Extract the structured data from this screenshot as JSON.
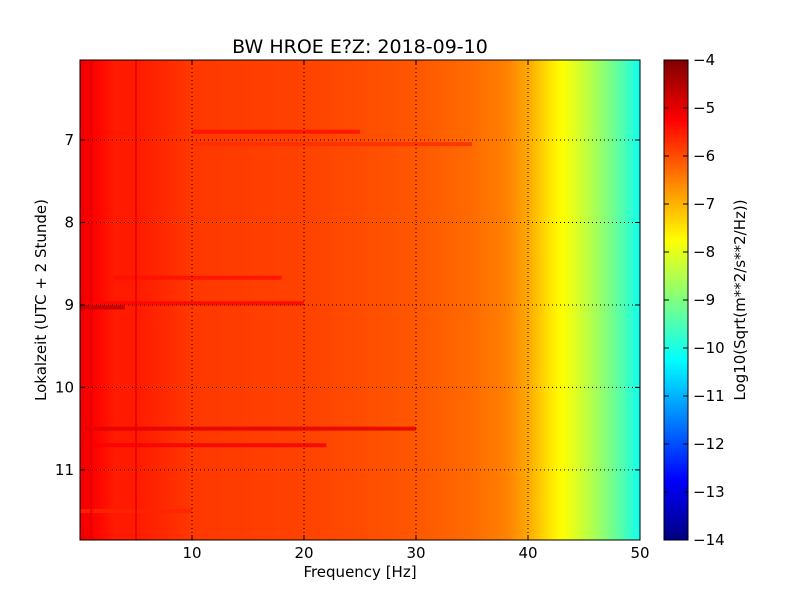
{
  "chart_data": {
    "type": "heatmap",
    "title": "BW HROE E?Z: 2018-09-10",
    "xlabel": "Frequency [Hz]",
    "ylabel": "Lokalzeit (UTC + 2 Stunde)",
    "xlim": [
      0,
      50
    ],
    "ylim": [
      11.85,
      6.03
    ],
    "y_inverted": true,
    "x_ticks": [
      10,
      20,
      30,
      40,
      50
    ],
    "x_tick_labels": [
      "10",
      "20",
      "30",
      "40",
      "50"
    ],
    "y_ticks": [
      7,
      8,
      9,
      10,
      11
    ],
    "y_tick_labels": [
      "7",
      "8",
      "9",
      "10",
      "11"
    ],
    "grid": true,
    "colormap": "jet",
    "colorbar": {
      "label": "Log10(Sqrt(m**2/s**2/Hz))",
      "range": [
        -14,
        -4
      ],
      "ticks": [
        -4,
        -5,
        -6,
        -7,
        -8,
        -9,
        -10,
        -11,
        -12,
        -13,
        -14
      ],
      "tick_labels": [
        "−4",
        "−5",
        "−6",
        "−7",
        "−8",
        "−9",
        "−10",
        "−11",
        "−12",
        "−13",
        "−14"
      ]
    },
    "spectrum_profile": {
      "frequency_hz": [
        0,
        1,
        3,
        5,
        10,
        20,
        30,
        35,
        38,
        40,
        42,
        44,
        46,
        48,
        50
      ],
      "level": [
        -5.1,
        -5.2,
        -5.5,
        -5.5,
        -5.8,
        -5.9,
        -6.1,
        -6.3,
        -6.5,
        -6.9,
        -7.5,
        -8.0,
        -8.6,
        -9.3,
        -10.1
      ]
    },
    "bands": [
      {
        "time": 6.9,
        "f_start": 10,
        "f_end": 25,
        "level": -5.4
      },
      {
        "time": 7.05,
        "f_start": 10,
        "f_end": 35,
        "level": -5.7
      },
      {
        "time": 8.67,
        "f_start": 3,
        "f_end": 18,
        "level": -5.4
      },
      {
        "time": 8.98,
        "f_start": 0.5,
        "f_end": 20,
        "level": -5.3
      },
      {
        "time": 9.03,
        "f_start": 0,
        "f_end": 4,
        "level": -4.6
      },
      {
        "time": 10.5,
        "f_start": 0.5,
        "f_end": 30,
        "level": -5.0
      },
      {
        "time": 10.7,
        "f_start": 0.5,
        "f_end": 22,
        "level": -5.2
      },
      {
        "time": 11.5,
        "f_start": 0,
        "f_end": 10,
        "level": -5.6
      }
    ],
    "vertical_lines": [
      {
        "frequency": 5,
        "level": -5.0
      },
      {
        "frequency": 1,
        "level": -5.0
      }
    ]
  }
}
